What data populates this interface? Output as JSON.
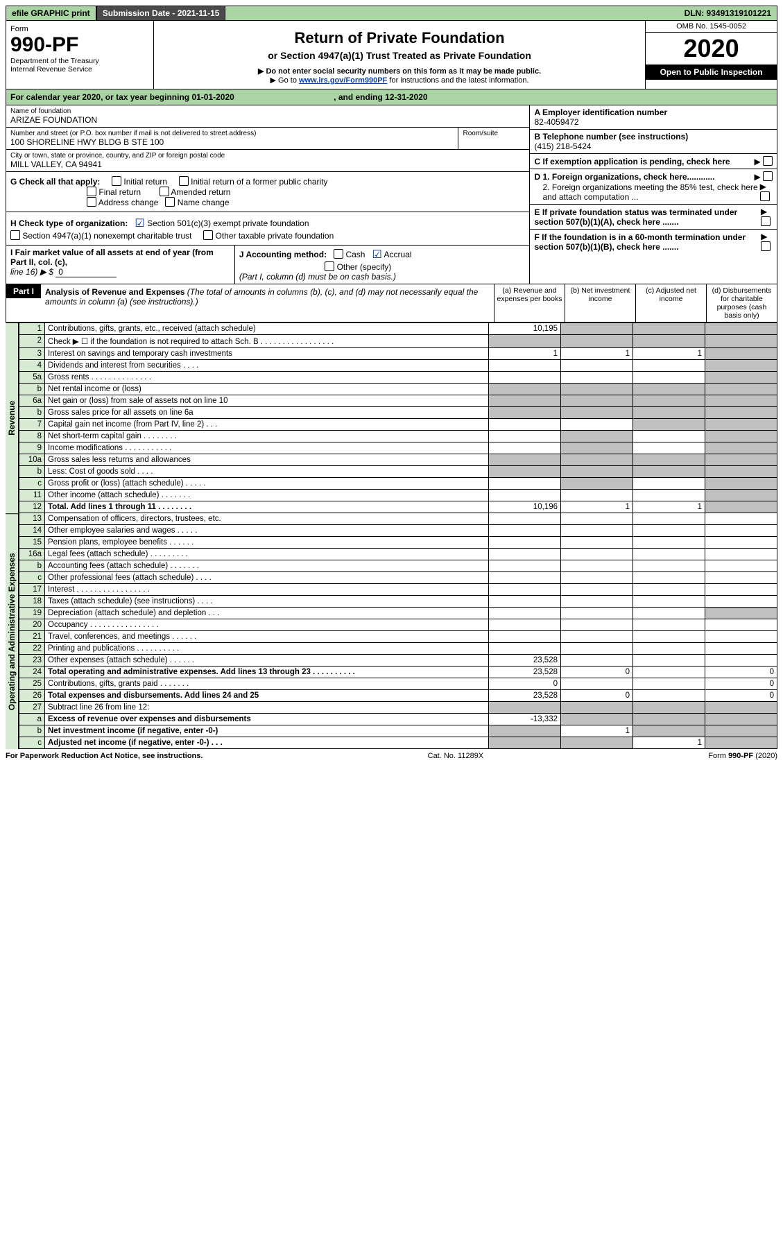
{
  "topbar": {
    "efile": "efile GRAPHIC print",
    "subdate_label": "Submission Date - 2021-11-15",
    "dln": "DLN: 93491319101221"
  },
  "header": {
    "form_label": "Form",
    "form_num": "990-PF",
    "dept1": "Department of the Treasury",
    "dept2": "Internal Revenue Service",
    "title": "Return of Private Foundation",
    "subtitle": "or Section 4947(a)(1) Trust Treated as Private Foundation",
    "note1": "▶ Do not enter social security numbers on this form as it may be made public.",
    "note2_pre": "▶ Go to ",
    "note2_link": "www.irs.gov/Form990PF",
    "note2_post": " for instructions and the latest information.",
    "omb": "OMB No. 1545-0052",
    "year": "2020",
    "open": "Open to Public Inspection"
  },
  "calyear": {
    "text_pre": "For calendar year 2020, or tax year beginning 01-01-2020",
    "text_mid": ", and ending 12-31-2020"
  },
  "idblock": {
    "name_lbl": "Name of foundation",
    "name": "ARIZAE FOUNDATION",
    "addr_lbl": "Number and street (or P.O. box number if mail is not delivered to street address)",
    "room_lbl": "Room/suite",
    "addr": "100 SHORELINE HWY BLDG B STE 100",
    "city_lbl": "City or town, state or province, country, and ZIP or foreign postal code",
    "city": "MILL VALLEY, CA  94941",
    "ein_lbl": "A Employer identification number",
    "ein": "82-4059472",
    "tel_lbl": "B Telephone number (see instructions)",
    "tel": "(415) 218-5424",
    "c_lbl": "C If exemption application is pending, check here",
    "d1_lbl": "D 1. Foreign organizations, check here............",
    "d2_lbl": "2. Foreign organizations meeting the 85% test, check here and attach computation ...",
    "e_lbl": "E  If private foundation status was terminated under section 507(b)(1)(A), check here .......",
    "f_lbl": "F  If the foundation is in a 60-month termination under section 507(b)(1)(B), check here .......",
    "g_lbl": "G Check all that apply:",
    "g_initial": "Initial return",
    "g_initial_charity": "Initial return of a former public charity",
    "g_final": "Final return",
    "g_amended": "Amended return",
    "g_addr": "Address change",
    "g_name": "Name change",
    "h_lbl": "H Check type of organization:",
    "h_501c3": "Section 501(c)(3) exempt private foundation",
    "h_4947": "Section 4947(a)(1) nonexempt charitable trust",
    "h_other": "Other taxable private foundation",
    "i_lbl_pre": "I Fair market value of all assets at end of year (from Part II, col. (c),",
    "i_lbl_line": "line 16) ▶ $",
    "i_val": "0",
    "j_lbl": "J Accounting method:",
    "j_cash": "Cash",
    "j_accrual": "Accrual",
    "j_other": "Other (specify)",
    "j_note": "(Part I, column (d) must be on cash basis.)"
  },
  "part1": {
    "label": "Part I",
    "heading": "Analysis of Revenue and Expenses",
    "heading_note": " (The total of amounts in columns (b), (c), and (d) may not necessarily equal the amounts in column (a) (see instructions).)",
    "col_a": "(a)   Revenue and expenses per books",
    "col_b": "(b)   Net investment income",
    "col_c": "(c)   Adjusted net income",
    "col_d": "(d)   Disbursements for charitable purposes (cash basis only)",
    "side_rev": "Revenue",
    "side_exp": "Operating and Administrative Expenses",
    "rows": [
      {
        "n": "1",
        "d": "Contributions, gifts, grants, etc., received (attach schedule)",
        "a": "10,195"
      },
      {
        "n": "2",
        "d": "Check ▶ ☐ if the foundation is not required to attach Sch. B  .  .  .  .  .  .  .  .  .  .  .  .  .  .  .  .  ."
      },
      {
        "n": "3",
        "d": "Interest on savings and temporary cash investments",
        "a": "1",
        "b": "1",
        "c": "1"
      },
      {
        "n": "4",
        "d": "Dividends and interest from securities  .  .  .  ."
      },
      {
        "n": "5a",
        "d": "Gross rents  .  .  .  .  .  .  .  .  .  .  .  .  .  ."
      },
      {
        "n": "b",
        "d": "Net rental income or (loss)"
      },
      {
        "n": "6a",
        "d": "Net gain or (loss) from sale of assets not on line 10"
      },
      {
        "n": "b",
        "d": "Gross sales price for all assets on line 6a"
      },
      {
        "n": "7",
        "d": "Capital gain net income (from Part IV, line 2)  .  .  ."
      },
      {
        "n": "8",
        "d": "Net short-term capital gain  .  .  .  .  .  .  .  ."
      },
      {
        "n": "9",
        "d": "Income modifications  .  .  .  .  .  .  .  .  .  .  ."
      },
      {
        "n": "10a",
        "d": "Gross sales less returns and allowances"
      },
      {
        "n": "b",
        "d": "Less: Cost of goods sold  .  .  .  ."
      },
      {
        "n": "c",
        "d": "Gross profit or (loss) (attach schedule)  .  .  .  .  ."
      },
      {
        "n": "11",
        "d": "Other income (attach schedule)  .  .  .  .  .  .  ."
      },
      {
        "n": "12",
        "d": "Total. Add lines 1 through 11  .  .  .  .  .  .  .  .",
        "a": "10,196",
        "b": "1",
        "c": "1",
        "bold": true
      },
      {
        "n": "13",
        "d": "Compensation of officers, directors, trustees, etc."
      },
      {
        "n": "14",
        "d": "Other employee salaries and wages  .  .  .  .  ."
      },
      {
        "n": "15",
        "d": "Pension plans, employee benefits  .  .  .  .  .  ."
      },
      {
        "n": "16a",
        "d": "Legal fees (attach schedule)  .  .  .  .  .  .  .  .  ."
      },
      {
        "n": "b",
        "d": "Accounting fees (attach schedule)  .  .  .  .  .  .  ."
      },
      {
        "n": "c",
        "d": "Other professional fees (attach schedule)  .  .  .  ."
      },
      {
        "n": "17",
        "d": "Interest  .  .  .  .  .  .  .  .  .  .  .  .  .  .  .  .  ."
      },
      {
        "n": "18",
        "d": "Taxes (attach schedule) (see instructions)  .  .  .  ."
      },
      {
        "n": "19",
        "d": "Depreciation (attach schedule) and depletion  .  .  ."
      },
      {
        "n": "20",
        "d": "Occupancy  .  .  .  .  .  .  .  .  .  .  .  .  .  .  .  ."
      },
      {
        "n": "21",
        "d": "Travel, conferences, and meetings  .  .  .  .  .  ."
      },
      {
        "n": "22",
        "d": "Printing and publications  .  .  .  .  .  .  .  .  .  ."
      },
      {
        "n": "23",
        "d": "Other expenses (attach schedule)  .  .  .  .  .  .",
        "a": "23,528"
      },
      {
        "n": "24",
        "d": "Total operating and administrative expenses. Add lines 13 through 23  .  .  .  .  .  .  .  .  .  .",
        "a": "23,528",
        "b": "0",
        "dd": "0",
        "bold": true
      },
      {
        "n": "25",
        "d": "Contributions, gifts, grants paid  .  .  .  .  .  .  .",
        "a": "0",
        "dd": "0"
      },
      {
        "n": "26",
        "d": "Total expenses and disbursements. Add lines 24 and 25",
        "a": "23,528",
        "b": "0",
        "dd": "0",
        "bold": true
      },
      {
        "n": "27",
        "d": "Subtract line 26 from line 12:"
      },
      {
        "n": "a",
        "d": "Excess of revenue over expenses and disbursements",
        "a": "-13,332",
        "bold": true
      },
      {
        "n": "b",
        "d": "Net investment income (if negative, enter -0-)",
        "b": "1",
        "bold": true
      },
      {
        "n": "c",
        "d": "Adjusted net income (if negative, enter -0-)  .  .  .",
        "c": "1",
        "bold": true
      }
    ]
  },
  "footer": {
    "left": "For Paperwork Reduction Act Notice, see instructions.",
    "mid": "Cat. No. 11289X",
    "right": "Form 990-PF (2020)"
  }
}
